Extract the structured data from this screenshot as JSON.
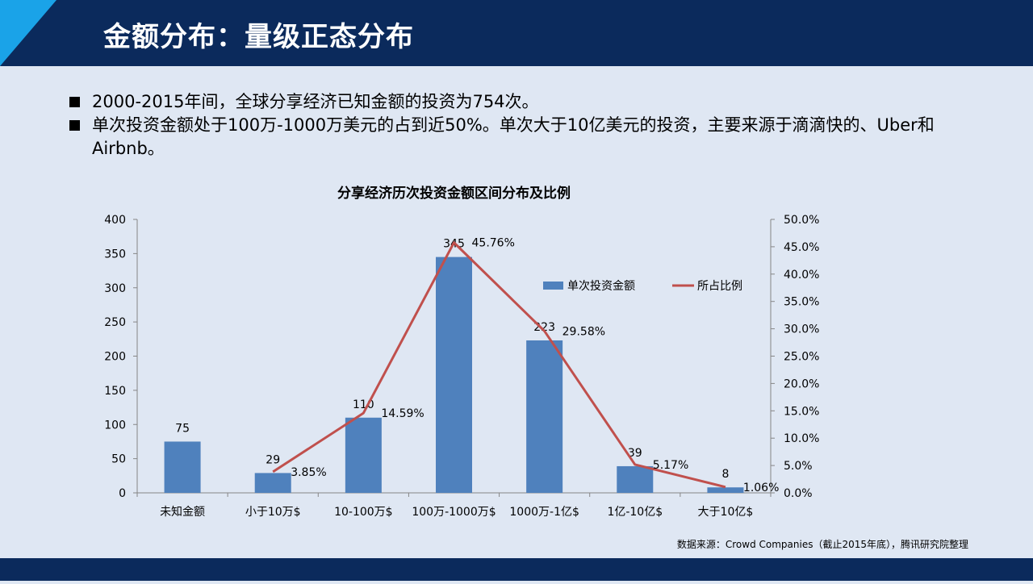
{
  "slide": {
    "title": "金额分布：量级正态分布",
    "bullets": [
      "2000-2015年间，全球分享经济已知金额的投资为754次。",
      "单次投资金额处于100万-1000万美元的占到近50%。单次大于10亿美元的投资，主要来源于滴滴快的、Uber和Airbnb。"
    ],
    "source": "数据来源：Crowd  Companies（截止2015年底），腾讯研究院整理"
  },
  "colors": {
    "title_bar": "#0b2a5c",
    "accent": "#1aa3e8",
    "background": "#dfe7f3",
    "bar": "#4f81bd",
    "line": "#c0504d"
  },
  "chart_data": {
    "type": "bar",
    "title": "分享经济历次投资金额区间分布及比例",
    "categories": [
      "未知金额",
      "小于10万$",
      "10-100万$",
      "100万-1000万$",
      "1000万-1亿$",
      "1亿-10亿$",
      "大于10亿$"
    ],
    "series": [
      {
        "name": "单次投资金额",
        "type": "bar",
        "axis": "left",
        "values": [
          75,
          29,
          110,
          345,
          223,
          39,
          8
        ],
        "labels": [
          "75",
          "29",
          "110",
          "345",
          "223",
          "39",
          "8"
        ]
      },
      {
        "name": "所占比例",
        "type": "line",
        "axis": "right",
        "values": [
          null,
          3.85,
          14.59,
          45.76,
          29.58,
          5.17,
          1.06
        ],
        "labels": [
          "",
          "3.85%",
          "14.59%",
          "45.76%",
          "29.58%",
          "5.17%",
          "1.06%"
        ]
      }
    ],
    "y_left": {
      "min": 0,
      "max": 400,
      "ticks": [
        "0",
        "50",
        "100",
        "150",
        "200",
        "250",
        "300",
        "350",
        "400"
      ]
    },
    "y_right": {
      "min": 0,
      "max": 50,
      "ticks": [
        "0.0%",
        "5.0%",
        "10.0%",
        "15.0%",
        "20.0%",
        "25.0%",
        "30.0%",
        "35.0%",
        "40.0%",
        "45.0%",
        "50.0%"
      ]
    },
    "grid": false,
    "legend": "upper-right"
  }
}
